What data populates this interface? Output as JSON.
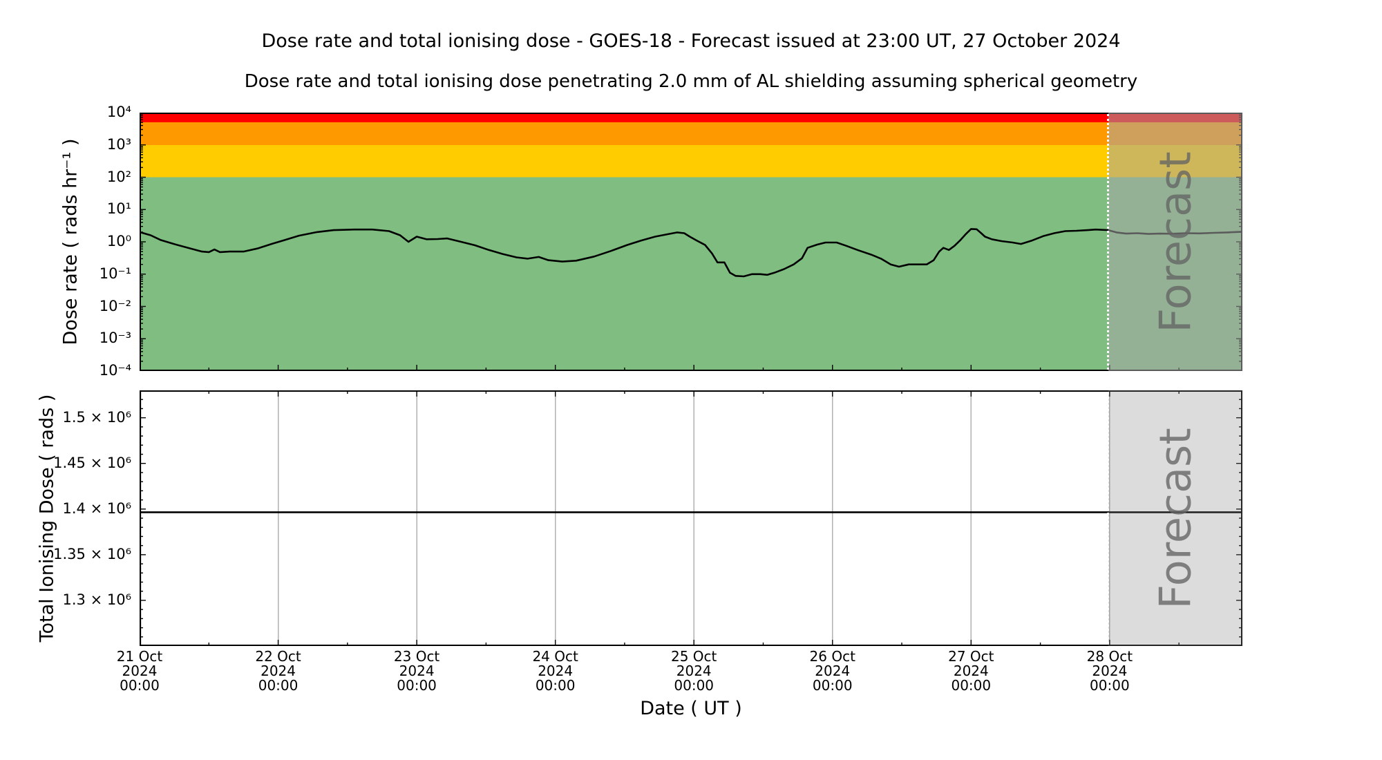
{
  "figure": {
    "title": "Dose rate and total ionising dose - GOES-18 - Forecast issued at 23:00 UT, 27 October 2024",
    "subtitle": "Dose rate and total ionising dose penetrating 2.0 mm of AL shielding assuming spherical geometry",
    "xlabel": "Date ( UT )",
    "watermark": "Forecast"
  },
  "x_axis": {
    "xlim_days": [
      0,
      7.958
    ],
    "tick_days": [
      0,
      1,
      2,
      3,
      4,
      5,
      6,
      7
    ],
    "minor_tick_interval_days": 0.5,
    "forecast_boundary_day": 6.99,
    "ticks": [
      {
        "date": "21 Oct",
        "year": "2024",
        "time": "00:00"
      },
      {
        "date": "22 Oct",
        "year": "2024",
        "time": "00:00"
      },
      {
        "date": "23 Oct",
        "year": "2024",
        "time": "00:00"
      },
      {
        "date": "24 Oct",
        "year": "2024",
        "time": "00:00"
      },
      {
        "date": "25 Oct",
        "year": "2024",
        "time": "00:00"
      },
      {
        "date": "26 Oct",
        "year": "2024",
        "time": "00:00"
      },
      {
        "date": "27 Oct",
        "year": "2024",
        "time": "00:00"
      },
      {
        "date": "28 Oct",
        "year": "2024",
        "time": "00:00"
      }
    ]
  },
  "chart_data": [
    {
      "type": "line",
      "name": "dose-rate",
      "ylabel": "Dose rate ( rads hr⁻¹ )",
      "xlabel": "Date ( UT )",
      "yscale": "log",
      "ylim": [
        0.0001,
        10000
      ],
      "ytick_values": [
        10000,
        1000,
        100,
        10,
        1,
        0.1,
        0.01,
        0.001,
        0.0001
      ],
      "ytick_labels": [
        "10⁴",
        "10³",
        "10²",
        "10¹",
        "10⁰",
        "10⁻¹",
        "10⁻²",
        "10⁻³",
        "10⁻⁴"
      ],
      "x_unit": "days since 21 Oct 2024 00:00 UT",
      "grid": false,
      "line_color": "#000000",
      "threshold_bands": [
        {
          "name": "red",
          "range": [
            5000,
            10000
          ],
          "color": "#fe0000"
        },
        {
          "name": "orange",
          "range": [
            1000,
            5000
          ],
          "color": "#ff9900"
        },
        {
          "name": "yellow",
          "range": [
            100,
            1000
          ],
          "color": "#ffcc00"
        },
        {
          "name": "green",
          "range": [
            0.0001,
            100
          ],
          "color": "#7fbe80"
        }
      ],
      "series": [
        {
          "name": "observed",
          "x": [
            0.0,
            0.08,
            0.15,
            0.25,
            0.35,
            0.45,
            0.5,
            0.54,
            0.58,
            0.65,
            0.75,
            0.85,
            0.95,
            1.05,
            1.15,
            1.28,
            1.4,
            1.55,
            1.68,
            1.8,
            1.88,
            1.94,
            2.0,
            2.07,
            2.15,
            2.22,
            2.32,
            2.42,
            2.52,
            2.62,
            2.72,
            2.8,
            2.88,
            2.95,
            3.05,
            3.15,
            3.28,
            3.4,
            3.52,
            3.62,
            3.72,
            3.82,
            3.88,
            3.93,
            3.97,
            4.02,
            4.08,
            4.13,
            4.17,
            4.22,
            4.26,
            4.3,
            4.36,
            4.42,
            4.48,
            4.53,
            4.58,
            4.65,
            4.72,
            4.78,
            4.82,
            4.89,
            4.95,
            5.03,
            5.1,
            5.18,
            5.28,
            5.35,
            5.42,
            5.48,
            5.55,
            5.62,
            5.68,
            5.73,
            5.77,
            5.8,
            5.84,
            5.88,
            5.92,
            5.96,
            6.0,
            6.04,
            6.07,
            6.1,
            6.15,
            6.22,
            6.3,
            6.36,
            6.44,
            6.52,
            6.6,
            6.68,
            6.76,
            6.84,
            6.9,
            6.95,
            6.99
          ],
          "y": [
            2.0,
            1.6,
            1.15,
            0.85,
            0.65,
            0.5,
            0.48,
            0.58,
            0.48,
            0.5,
            0.5,
            0.62,
            0.85,
            1.15,
            1.55,
            2.0,
            2.3,
            2.4,
            2.4,
            2.15,
            1.6,
            1.0,
            1.45,
            1.2,
            1.22,
            1.27,
            1.0,
            0.78,
            0.56,
            0.42,
            0.33,
            0.3,
            0.34,
            0.27,
            0.245,
            0.26,
            0.35,
            0.52,
            0.8,
            1.1,
            1.45,
            1.75,
            1.95,
            1.85,
            1.45,
            1.1,
            0.8,
            0.44,
            0.23,
            0.23,
            0.11,
            0.088,
            0.085,
            0.1,
            0.1,
            0.095,
            0.11,
            0.143,
            0.2,
            0.31,
            0.65,
            0.82,
            0.95,
            0.95,
            0.75,
            0.56,
            0.4,
            0.3,
            0.2,
            0.17,
            0.2,
            0.2,
            0.2,
            0.27,
            0.5,
            0.65,
            0.56,
            0.75,
            1.1,
            1.7,
            2.5,
            2.45,
            1.9,
            1.45,
            1.2,
            1.05,
            0.95,
            0.86,
            1.1,
            1.5,
            1.85,
            2.15,
            2.2,
            2.3,
            2.4,
            2.35,
            2.3
          ]
        },
        {
          "name": "forecast",
          "x": [
            6.99,
            7.05,
            7.12,
            7.2,
            7.28,
            7.36,
            7.45,
            7.55,
            7.65,
            7.75,
            7.85,
            7.958
          ],
          "y": [
            2.3,
            1.95,
            1.8,
            1.85,
            1.75,
            1.8,
            1.78,
            1.85,
            1.82,
            1.9,
            1.95,
            2.05
          ]
        }
      ]
    },
    {
      "type": "line",
      "name": "total-ionising-dose",
      "ylabel": "Total Ionising Dose ( rads )",
      "xlabel": "Date ( UT )",
      "yscale": "linear",
      "ylim": [
        1250000,
        1530000
      ],
      "ytick_values": [
        1500000,
        1450000,
        1400000,
        1350000,
        1300000
      ],
      "ytick_labels": [
        "1.5 × 10⁶",
        "1.45 × 10⁶",
        "1.4 × 10⁶",
        "1.35 × 10⁶",
        "1.3 × 10⁶"
      ],
      "minor_ytick_step": 10000,
      "grid": "vertical-gridlines-at-each-day",
      "gridline_color": "#b0b0b0",
      "line_color": "#000000",
      "series": [
        {
          "name": "observed",
          "x": [
            0,
            6.99
          ],
          "y": [
            1396500,
            1396500
          ]
        },
        {
          "name": "forecast",
          "x": [
            6.99,
            7.958
          ],
          "y": [
            1396500,
            1396500
          ]
        }
      ]
    }
  ],
  "forecast_region": {
    "overlay_color_top": "rgba(165,165,165,0.55)",
    "overlay_color_bottom": "rgba(128,128,128,0.28)",
    "boundary_line_style": "white dotted"
  }
}
